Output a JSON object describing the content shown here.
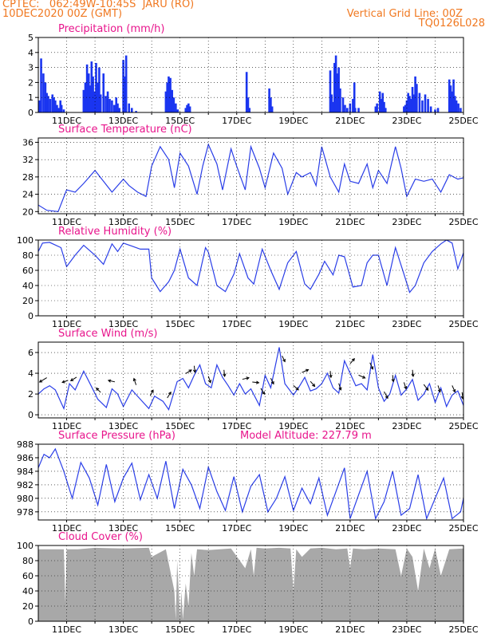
{
  "header": {
    "line1": "CPTEC:   062:49W-10:45S  JARU (RO)",
    "line2": "10DEC2020 00Z (GMT)",
    "grid_note": "Vertical Grid Line: 00Z",
    "run_id": "TQ0126L028",
    "color": "#f07820"
  },
  "colors": {
    "title": "#e8158c",
    "line": "#2a3ee8",
    "bar": "#1a35f0",
    "cloud": "#a8a8a8",
    "axis": "#000000",
    "grid": "#000000"
  },
  "x_axis": {
    "start_label": "10DEC2020 00Z",
    "end_label": "25DEC",
    "tick_labels": [
      "11DEC",
      "13DEC",
      "15DEC",
      "17DEC",
      "19DEC",
      "21DEC",
      "23DEC",
      "25DEC"
    ],
    "tick_days": [
      1,
      3,
      5,
      7,
      9,
      11,
      13,
      15
    ],
    "grid_days": [
      1,
      2,
      3,
      4,
      5,
      6,
      7,
      8,
      9,
      10,
      11,
      12,
      13,
      14,
      15
    ],
    "range_days": [
      0,
      15
    ]
  },
  "chart_data": [
    {
      "type": "bar",
      "title": "Precipitation (mm/h)",
      "ylim": [
        0,
        5
      ],
      "yticks": [
        0,
        1,
        2,
        3,
        4,
        5
      ],
      "x": [
        0.05,
        0.1,
        0.18,
        0.25,
        0.3,
        0.35,
        0.42,
        0.5,
        0.55,
        0.6,
        0.66,
        0.72,
        0.78,
        0.82,
        0.9,
        1.6,
        1.66,
        1.72,
        1.78,
        1.82,
        1.88,
        1.93,
        1.98,
        2.04,
        2.1,
        2.15,
        2.2,
        2.3,
        2.38,
        2.45,
        2.52,
        2.6,
        2.68,
        2.75,
        2.8,
        2.86,
        3.0,
        3.05,
        3.1,
        3.2,
        3.3,
        3.45,
        4.5,
        4.55,
        4.6,
        4.66,
        4.72,
        4.78,
        4.85,
        4.92,
        5.2,
        5.25,
        5.3,
        5.35,
        7.35,
        7.4,
        7.45,
        8.15,
        8.2,
        8.25,
        10.3,
        10.35,
        10.4,
        10.45,
        10.5,
        10.55,
        10.6,
        10.65,
        10.75,
        10.82,
        10.9,
        11.0,
        11.1,
        11.15,
        11.18,
        11.3,
        11.9,
        11.95,
        12.05,
        12.1,
        12.15,
        12.2,
        12.25,
        12.9,
        12.95,
        13.0,
        13.05,
        13.1,
        13.15,
        13.2,
        13.25,
        13.3,
        13.35,
        13.45,
        13.55,
        13.65,
        13.75,
        13.85,
        14.0,
        14.1,
        14.5,
        14.55,
        14.6,
        14.65,
        14.7,
        14.75,
        14.82,
        14.9
      ],
      "values": [
        0.8,
        3.6,
        2.6,
        2.0,
        1.3,
        1.1,
        0.9,
        1.2,
        1.0,
        0.8,
        0.5,
        0.3,
        0.8,
        0.5,
        0.2,
        1.5,
        2.0,
        3.2,
        2.6,
        1.8,
        3.4,
        2.4,
        1.4,
        3.3,
        2.0,
        3.0,
        1.2,
        2.6,
        1.1,
        1.4,
        0.9,
        0.8,
        0.5,
        1.0,
        0.6,
        0.3,
        3.5,
        2.4,
        3.8,
        0.6,
        0.3,
        0.1,
        1.4,
        2.0,
        2.4,
        2.3,
        1.5,
        1.0,
        0.6,
        0.2,
        0.3,
        0.5,
        0.6,
        0.4,
        2.7,
        1.0,
        0.3,
        1.6,
        1.0,
        0.4,
        2.8,
        1.2,
        0.7,
        3.3,
        3.8,
        2.6,
        3.0,
        1.6,
        1.0,
        0.5,
        0.3,
        0.6,
        0.9,
        2.0,
        0.3,
        0.3,
        0.4,
        0.6,
        1.4,
        0.9,
        1.3,
        0.7,
        0.3,
        0.4,
        0.5,
        0.8,
        1.3,
        1.1,
        0.9,
        1.7,
        1.2,
        2.4,
        1.9,
        1.3,
        0.8,
        1.2,
        0.9,
        0.4,
        0.2,
        0.3,
        2.2,
        1.8,
        1.4,
        2.2,
        1.1,
        0.8,
        0.6,
        0.3
      ]
    },
    {
      "type": "line",
      "title": "Surface Temperature (nC)",
      "ylim": [
        19.5,
        37
      ],
      "yticks": [
        20,
        24,
        28,
        32,
        36
      ],
      "x": [
        0,
        0.3,
        0.7,
        1.0,
        1.3,
        1.6,
        2.0,
        2.3,
        2.6,
        3.0,
        3.2,
        3.5,
        3.8,
        4.0,
        4.3,
        4.6,
        4.8,
        5.0,
        5.3,
        5.6,
        5.8,
        6.0,
        6.3,
        6.5,
        6.8,
        7.0,
        7.3,
        7.5,
        7.8,
        8.0,
        8.3,
        8.6,
        8.8,
        9.1,
        9.3,
        9.6,
        9.8,
        10.0,
        10.3,
        10.6,
        10.8,
        11.0,
        11.3,
        11.6,
        11.8,
        12.0,
        12.3,
        12.6,
        12.8,
        13.0,
        13.3,
        13.6,
        13.9,
        14.2,
        14.5,
        14.8,
        15.0
      ],
      "values": [
        21.5,
        20.3,
        20.0,
        25.0,
        24.5,
        26.5,
        29.5,
        27.0,
        24.5,
        27.5,
        26.0,
        24.5,
        23.5,
        30.5,
        35.0,
        32.0,
        25.5,
        33.5,
        30.5,
        24.0,
        30.5,
        35.5,
        31.0,
        25.0,
        34.5,
        30.5,
        25.0,
        35.0,
        30.0,
        25.5,
        33.5,
        30.0,
        24.0,
        29.0,
        28.0,
        29.0,
        26.0,
        35.0,
        28.0,
        24.5,
        31.0,
        27.0,
        26.5,
        31.0,
        25.5,
        29.5,
        26.5,
        35.0,
        30.0,
        23.5,
        27.5,
        27.0,
        27.5,
        24.5,
        28.5,
        27.5,
        27.8
      ]
    },
    {
      "type": "line",
      "title": "Relative Humidity (%)",
      "ylim": [
        0,
        100
      ],
      "yticks": [
        0,
        20,
        40,
        60,
        80,
        100
      ],
      "x": [
        0,
        0.15,
        0.4,
        0.8,
        1.0,
        1.3,
        1.6,
        2.0,
        2.3,
        2.6,
        2.8,
        3.0,
        3.3,
        3.6,
        3.9,
        4.0,
        4.3,
        4.6,
        4.8,
        5.0,
        5.3,
        5.6,
        5.9,
        6.0,
        6.3,
        6.6,
        6.9,
        7.1,
        7.4,
        7.6,
        7.9,
        8.2,
        8.5,
        8.8,
        9.1,
        9.4,
        9.6,
        9.9,
        10.1,
        10.4,
        10.6,
        10.8,
        11.1,
        11.4,
        11.6,
        11.8,
        12.0,
        12.3,
        12.6,
        12.9,
        13.1,
        13.3,
        13.6,
        13.9,
        14.2,
        14.4,
        14.6,
        14.8,
        15.0
      ],
      "values": [
        85,
        96,
        97,
        90,
        65,
        80,
        93,
        80,
        68,
        95,
        85,
        96,
        92,
        88,
        88,
        50,
        32,
        45,
        60,
        88,
        50,
        40,
        90,
        84,
        40,
        32,
        55,
        82,
        50,
        42,
        88,
        60,
        35,
        70,
        85,
        42,
        35,
        55,
        72,
        54,
        80,
        78,
        38,
        40,
        70,
        80,
        80,
        40,
        90,
        55,
        31,
        40,
        70,
        85,
        95,
        100,
        96,
        62,
        83
      ]
    },
    {
      "type": "line",
      "title": "Surface Wind (m/s)",
      "ylim": [
        -0.3,
        7
      ],
      "yticks": [
        0,
        2,
        4,
        6
      ],
      "x": [
        0,
        0.2,
        0.4,
        0.6,
        0.9,
        1.1,
        1.3,
        1.6,
        1.9,
        2.1,
        2.4,
        2.6,
        2.8,
        3.0,
        3.3,
        3.6,
        3.9,
        4.1,
        4.4,
        4.6,
        4.9,
        5.1,
        5.3,
        5.5,
        5.7,
        5.9,
        6.1,
        6.3,
        6.5,
        6.7,
        6.9,
        7.1,
        7.3,
        7.5,
        7.8,
        8.0,
        8.2,
        8.5,
        8.7,
        9.0,
        9.2,
        9.4,
        9.6,
        9.8,
        10.0,
        10.2,
        10.4,
        10.6,
        10.8,
        11.0,
        11.2,
        11.4,
        11.6,
        11.8,
        12.0,
        12.2,
        12.4,
        12.6,
        12.8,
        13.0,
        13.2,
        13.4,
        13.6,
        13.8,
        14.0,
        14.2,
        14.4,
        14.6,
        14.8,
        15.0
      ],
      "values": [
        2.0,
        2.5,
        2.8,
        2.4,
        0.6,
        3.0,
        2.4,
        4.2,
        2.6,
        1.5,
        0.7,
        2.5,
        2.0,
        0.8,
        2.4,
        1.5,
        0.6,
        1.8,
        1.3,
        0.5,
        3.2,
        3.5,
        2.6,
        3.8,
        4.8,
        3.0,
        2.6,
        4.8,
        3.6,
        2.8,
        1.9,
        3.0,
        2.0,
        2.5,
        0.9,
        3.8,
        2.6,
        6.5,
        3.0,
        1.9,
        2.7,
        3.6,
        2.3,
        2.5,
        3.0,
        4.0,
        2.6,
        2.1,
        5.2,
        4.0,
        2.8,
        3.0,
        2.4,
        5.8,
        2.6,
        1.3,
        2.0,
        3.8,
        1.9,
        2.5,
        3.4,
        1.4,
        2.0,
        3.0,
        1.2,
        2.6,
        0.8,
        1.9,
        2.3,
        0.9
      ]
    },
    {
      "type": "line",
      "title": "Surface Pressure (hPa)",
      "annotation": "Model Altitude: 227.79 m",
      "ylim": [
        976.8,
        988
      ],
      "yticks": [
        978,
        980,
        982,
        984,
        986,
        988
      ],
      "x": [
        0,
        0.2,
        0.4,
        0.6,
        0.9,
        1.2,
        1.5,
        1.8,
        2.1,
        2.4,
        2.7,
        3.0,
        3.3,
        3.6,
        3.9,
        4.2,
        4.5,
        4.8,
        5.1,
        5.4,
        5.7,
        6.0,
        6.3,
        6.6,
        6.9,
        7.2,
        7.5,
        7.8,
        8.1,
        8.4,
        8.7,
        9.0,
        9.3,
        9.6,
        9.9,
        10.2,
        10.5,
        10.8,
        11.0,
        11.3,
        11.6,
        11.9,
        12.2,
        12.5,
        12.8,
        13.1,
        13.4,
        13.7,
        14.0,
        14.3,
        14.6,
        14.9,
        15.0
      ],
      "values": [
        984.5,
        986.5,
        986.0,
        987.3,
        984.0,
        980.0,
        985.3,
        983.0,
        979.0,
        985.0,
        979.5,
        983.0,
        985.2,
        979.8,
        983.5,
        980.0,
        985.5,
        978.5,
        984.3,
        982.0,
        978.5,
        984.6,
        981.0,
        978.2,
        983.2,
        978.0,
        981.8,
        983.5,
        978.0,
        980.0,
        983.2,
        978.2,
        981.5,
        979.2,
        983.0,
        977.5,
        981.0,
        984.5,
        977.0,
        980.5,
        984.0,
        977.0,
        979.5,
        984.0,
        977.5,
        978.5,
        983.5,
        977.0,
        980.0,
        983.0,
        977.0,
        978.0,
        980.0
      ]
    },
    {
      "type": "area",
      "title": "Cloud Cover (%)",
      "ylim": [
        0,
        100
      ],
      "yticks": [
        0,
        20,
        40,
        60,
        80,
        100
      ],
      "x": [
        0,
        0.9,
        0.92,
        0.95,
        0.98,
        1.0,
        1.4,
        2.0,
        3.0,
        3.9,
        4.0,
        4.5,
        4.8,
        4.85,
        4.9,
        5.0,
        5.05,
        5.1,
        5.2,
        5.3,
        5.4,
        5.5,
        5.6,
        6.0,
        6.8,
        7.3,
        7.5,
        7.6,
        7.7,
        8.0,
        8.5,
        8.9,
        9.0,
        9.1,
        9.3,
        9.6,
        10.0,
        10.5,
        10.9,
        11.0,
        11.1,
        11.5,
        12.0,
        12.6,
        12.8,
        13.0,
        13.2,
        13.4,
        13.6,
        13.8,
        14.0,
        14.2,
        14.5,
        15.0
      ],
      "values": [
        95,
        95,
        70,
        25,
        60,
        95,
        95,
        97,
        96,
        97,
        85,
        95,
        40,
        2,
        80,
        5,
        40,
        2,
        50,
        20,
        90,
        60,
        95,
        94,
        96,
        70,
        95,
        60,
        97,
        96,
        97,
        96,
        40,
        95,
        85,
        96,
        97,
        95,
        96,
        70,
        96,
        95,
        96,
        95,
        60,
        96,
        85,
        40,
        96,
        70,
        96,
        60,
        95,
        96
      ]
    }
  ],
  "wind_arrows_note": "Direction arrows drawn along the wind trace",
  "wind_arrows": [
    {
      "d": 0.3,
      "u": -1,
      "v": -0.6
    },
    {
      "d": 1.05,
      "u": -0.8,
      "v": -0.3
    },
    {
      "d": 1.35,
      "u": -0.8,
      "v": -0.5
    },
    {
      "d": 2.2,
      "u": -0.6,
      "v": 0.6
    },
    {
      "d": 2.7,
      "u": -0.9,
      "v": 0.2
    },
    {
      "d": 3.45,
      "u": -0.3,
      "v": 0.9
    },
    {
      "d": 3.95,
      "u": 0.4,
      "v": 0.8
    },
    {
      "d": 4.55,
      "u": 0.5,
      "v": 0.8
    },
    {
      "d": 5.2,
      "u": 0.8,
      "v": 0.5
    },
    {
      "d": 5.5,
      "u": 0.1,
      "v": -0.9
    },
    {
      "d": 6.0,
      "u": 0.3,
      "v": -0.9
    },
    {
      "d": 6.55,
      "u": 0.1,
      "v": -0.9
    },
    {
      "d": 7.2,
      "u": 0.9,
      "v": 0.2
    },
    {
      "d": 7.55,
      "u": 0.9,
      "v": -0.1
    },
    {
      "d": 7.85,
      "u": 0.5,
      "v": -0.8
    },
    {
      "d": 8.2,
      "u": 0.4,
      "v": -0.8
    },
    {
      "d": 8.6,
      "u": 0.4,
      "v": -0.8
    },
    {
      "d": 9.0,
      "u": 0.7,
      "v": -0.6
    },
    {
      "d": 9.3,
      "u": 0.9,
      "v": 0.4
    },
    {
      "d": 9.6,
      "u": 0.6,
      "v": -0.7
    },
    {
      "d": 10.3,
      "u": 0.1,
      "v": -0.9
    },
    {
      "d": 10.6,
      "u": 0.3,
      "v": -0.9
    },
    {
      "d": 11.0,
      "u": 0.6,
      "v": 0.7
    },
    {
      "d": 11.3,
      "u": 0.9,
      "v": -0.4
    },
    {
      "d": 11.7,
      "u": 0.4,
      "v": -0.9
    },
    {
      "d": 12.2,
      "u": 0.5,
      "v": -0.9
    },
    {
      "d": 12.5,
      "u": 0.1,
      "v": -0.9
    },
    {
      "d": 12.9,
      "u": 0.3,
      "v": -0.9
    },
    {
      "d": 13.2,
      "u": 0.1,
      "v": -0.9
    },
    {
      "d": 13.6,
      "u": 0.6,
      "v": -0.8
    },
    {
      "d": 14.1,
      "u": 0.3,
      "v": -0.9
    },
    {
      "d": 14.6,
      "u": 0.4,
      "v": -0.9
    },
    {
      "d": 14.95,
      "u": 0.1,
      "v": -0.9
    }
  ]
}
